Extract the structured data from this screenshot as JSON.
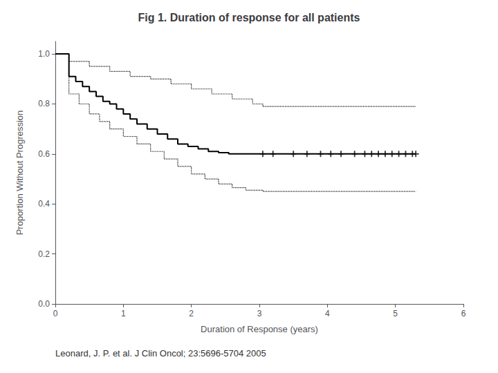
{
  "chart_data": {
    "type": "line",
    "title": "Fig 1. Duration of response for all patients",
    "xlabel": "Duration of Response (years)",
    "ylabel": "Proportion Without Progression",
    "caption": "Leonard, J. P. et al. J Clin Oncol; 23:5696-5704 2005",
    "xlim": [
      0,
      6
    ],
    "xticks": [
      0,
      1,
      2,
      3,
      4,
      5,
      6
    ],
    "ylim": [
      0,
      1.05
    ],
    "yticks": [
      {
        "value": 0,
        "label": "0.0"
      },
      0.2,
      0.4,
      0.6,
      0.8,
      {
        "value": 1,
        "label": "1.0"
      }
    ],
    "grid": false,
    "series": [
      {
        "type": "step",
        "color": "#000000",
        "line_style": "dotted",
        "x": [
          0,
          0.2,
          0.5,
          0.8,
          1.1,
          1.4,
          1.7,
          2.0,
          2.3,
          2.6,
          2.9,
          3.05,
          5.3
        ],
        "values": [
          1.0,
          0.97,
          0.95,
          0.93,
          0.91,
          0.9,
          0.88,
          0.86,
          0.84,
          0.82,
          0.8,
          0.79,
          0.79
        ]
      },
      {
        "type": "step",
        "color": "#000000",
        "line_style": "dotted",
        "x": [
          0,
          0.2,
          0.35,
          0.5,
          0.65,
          0.8,
          1.0,
          1.2,
          1.4,
          1.6,
          1.8,
          2.0,
          2.2,
          2.4,
          2.6,
          2.8,
          3.05,
          5.3
        ],
        "values": [
          1.0,
          0.84,
          0.8,
          0.76,
          0.73,
          0.7,
          0.67,
          0.64,
          0.61,
          0.58,
          0.55,
          0.52,
          0.5,
          0.48,
          0.465,
          0.455,
          0.45,
          0.45
        ]
      },
      {
        "type": "step",
        "color": "#000000",
        "line_style": "solid",
        "x": [
          0,
          0.2,
          0.3,
          0.4,
          0.5,
          0.6,
          0.7,
          0.8,
          0.9,
          1.0,
          1.1,
          1.2,
          1.35,
          1.5,
          1.65,
          1.8,
          1.95,
          2.1,
          2.25,
          2.4,
          2.55,
          2.7,
          2.85,
          3.05,
          5.3
        ],
        "values": [
          1.0,
          0.91,
          0.89,
          0.87,
          0.85,
          0.83,
          0.81,
          0.8,
          0.78,
          0.76,
          0.74,
          0.72,
          0.7,
          0.68,
          0.66,
          0.64,
          0.63,
          0.62,
          0.61,
          0.605,
          0.6,
          0.6,
          0.6,
          0.6,
          0.6
        ]
      },
      {
        "type": "scatter",
        "color": "#000000",
        "marker": "plus",
        "x": [
          3.05,
          3.2,
          3.5,
          3.7,
          3.9,
          4.05,
          4.2,
          4.4,
          4.55,
          4.65,
          4.75,
          4.85,
          4.95,
          5.05,
          5.15,
          5.25,
          5.3
        ],
        "values": [
          0.6,
          0.6,
          0.6,
          0.6,
          0.6,
          0.6,
          0.6,
          0.6,
          0.6,
          0.6,
          0.6,
          0.6,
          0.6,
          0.6,
          0.6,
          0.6,
          0.6
        ]
      }
    ]
  }
}
